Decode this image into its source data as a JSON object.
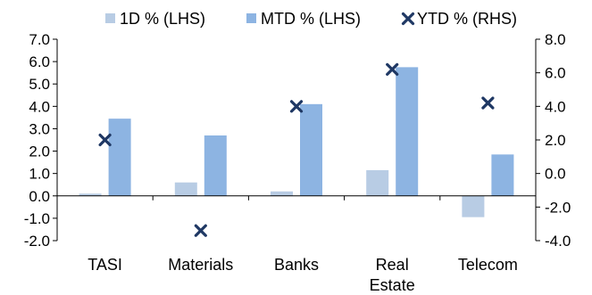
{
  "chart_data": {
    "type": "bar",
    "categories": [
      "TASI",
      "Materials",
      "Banks",
      "Real Estate",
      "Telecom"
    ],
    "category_lines": [
      [
        "TASI"
      ],
      [
        "Materials"
      ],
      [
        "Banks"
      ],
      [
        "Real",
        "Estate"
      ],
      [
        "Telecom"
      ]
    ],
    "series": [
      {
        "name": "1D % (LHS)",
        "type": "bar",
        "axis": "left",
        "color": "#b8cce4",
        "values": [
          0.1,
          0.6,
          0.2,
          1.15,
          -0.95
        ]
      },
      {
        "name": "MTD % (LHS)",
        "type": "bar",
        "axis": "left",
        "color": "#8db4e2",
        "values": [
          3.45,
          2.7,
          4.1,
          5.75,
          1.85
        ]
      },
      {
        "name": "YTD % (RHS)",
        "type": "scatter",
        "axis": "right",
        "color": "#1f3864",
        "marker": "x",
        "values": [
          2.0,
          -3.4,
          4.0,
          6.2,
          4.2
        ]
      }
    ],
    "y_left": {
      "range": [
        -2.0,
        7.0
      ],
      "ticks": [
        "7.0",
        "6.0",
        "5.0",
        "4.0",
        "3.0",
        "2.0",
        "1.0",
        "0.0",
        "-1.0",
        "-2.0"
      ],
      "tick_values": [
        7,
        6,
        5,
        4,
        3,
        2,
        1,
        0,
        -1,
        -2
      ]
    },
    "y_right": {
      "range": [
        -4.0,
        8.0
      ],
      "ticks": [
        "8.0",
        "6.0",
        "4.0",
        "2.0",
        "0.0",
        "-2.0",
        "-4.0"
      ],
      "tick_values": [
        8,
        6,
        4,
        2,
        0,
        -2,
        -4
      ]
    },
    "legend": "top",
    "grid": false
  }
}
